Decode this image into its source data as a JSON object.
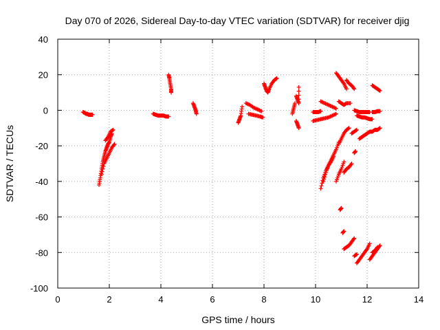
{
  "chart_data": {
    "type": "scatter",
    "title": "Day 070 of 2026, Sidereal Day-to-day VTEC variation (SDTVAR) for receiver djig",
    "xlabel": "GPS time / hours",
    "ylabel": "SDTVAR / TECUs",
    "xlim": [
      0,
      14
    ],
    "ylim": [
      -100,
      40
    ],
    "x_ticks": [
      0,
      2,
      4,
      6,
      8,
      10,
      12,
      14
    ],
    "y_ticks": [
      -100,
      -80,
      -60,
      -40,
      -20,
      0,
      20,
      40
    ],
    "grid": true,
    "marker": "plus",
    "series_color": "#ff0000",
    "segments": [
      {
        "x": [
          0.98,
          1.05,
          1.1,
          1.15,
          1.2,
          1.25,
          1.3,
          1.35
        ],
        "y": [
          -1,
          -1.5,
          -2,
          -2,
          -2.5,
          -2.5,
          -2.5,
          -2.5
        ]
      },
      {
        "x": [
          1.6,
          1.65,
          1.7,
          1.75,
          1.8,
          1.85,
          1.9,
          1.95,
          2.0,
          2.05,
          2.1
        ],
        "y": [
          -42,
          -38,
          -33,
          -29,
          -26,
          -23,
          -21,
          -19,
          -18,
          -15,
          -13
        ]
      },
      {
        "x": [
          1.7,
          1.8,
          1.9,
          2.0,
          2.1,
          2.2
        ],
        "y": [
          -36,
          -30,
          -27,
          -24,
          -21,
          -19
        ]
      },
      {
        "x": [
          1.85,
          1.95,
          2.05,
          2.15
        ],
        "y": [
          -17,
          -15,
          -12,
          -11
        ]
      },
      {
        "x": [
          3.7,
          3.8,
          3.9,
          4.0,
          4.1,
          4.2,
          4.3
        ],
        "y": [
          -2,
          -2.5,
          -3,
          -3,
          -3,
          -3.5,
          -3.5
        ]
      },
      {
        "x": [
          4.3,
          4.33,
          4.36,
          4.4,
          4.4
        ],
        "y": [
          20,
          18,
          15,
          12,
          10
        ]
      },
      {
        "x": [
          5.25,
          5.3,
          5.35,
          5.38
        ],
        "y": [
          4,
          2,
          0,
          -2
        ]
      },
      {
        "x": [
          7.0,
          7.05,
          7.1,
          7.15
        ],
        "y": [
          -7,
          -5,
          -3,
          2
        ]
      },
      {
        "x": [
          7.3,
          7.45,
          7.6,
          7.75,
          7.9
        ],
        "y": [
          4,
          3,
          1.5,
          0.5,
          -0.5
        ]
      },
      {
        "x": [
          7.4,
          7.55,
          7.7,
          7.85,
          7.95
        ],
        "y": [
          -2,
          -2.5,
          -3,
          -3.5,
          -4
        ]
      },
      {
        "x": [
          8.0,
          8.05,
          8.1,
          8.15,
          8.2,
          8.3,
          8.4,
          8.5
        ],
        "y": [
          15,
          13,
          11,
          10,
          12,
          15,
          17,
          18
        ]
      },
      {
        "x": [
          9.1,
          9.15,
          9.2
        ],
        "y": [
          -2,
          1,
          4
        ]
      },
      {
        "x": [
          9.25,
          9.3,
          9.35,
          9.35
        ],
        "y": [
          8,
          6,
          4,
          13
        ]
      },
      {
        "x": [
          9.25,
          9.3,
          9.35
        ],
        "y": [
          -6,
          -8,
          -10
        ]
      },
      {
        "x": [
          9.9,
          10.0,
          10.1,
          10.2
        ],
        "y": [
          -1,
          -1,
          -1,
          -0.5
        ]
      },
      {
        "x": [
          9.9,
          10.05,
          10.2,
          10.35,
          10.5,
          10.65,
          10.8
        ],
        "y": [
          -6,
          -5.5,
          -5,
          -4.5,
          -4,
          -3,
          -2
        ]
      },
      {
        "x": [
          10.2,
          10.35,
          10.5,
          10.65,
          10.8
        ],
        "y": [
          5,
          4,
          3,
          2,
          1
        ]
      },
      {
        "x": [
          10.8,
          10.9,
          11.0,
          11.1,
          11.2
        ],
        "y": [
          21,
          19,
          17,
          15,
          12
        ]
      },
      {
        "x": [
          11.2,
          11.3,
          11.4,
          11.5
        ],
        "y": [
          17,
          15,
          14,
          12
        ]
      },
      {
        "x": [
          10.9,
          11.0,
          11.1,
          11.2,
          11.35
        ],
        "y": [
          5,
          4,
          3,
          4,
          4
        ]
      },
      {
        "x": [
          11.5,
          11.6,
          11.7,
          11.8,
          11.9,
          12.0,
          12.1
        ],
        "y": [
          0,
          -0.5,
          -1,
          -1,
          -1,
          -1,
          -1
        ]
      },
      {
        "x": [
          11.6,
          11.7,
          11.8,
          11.9,
          12.0,
          12.1,
          12.2
        ],
        "y": [
          -3,
          -3.5,
          -4,
          -4,
          -4.5,
          -5,
          -5
        ]
      },
      {
        "x": [
          12.2,
          12.3,
          12.4,
          12.5
        ],
        "y": [
          -1,
          -1,
          -0.5,
          -0.5
        ]
      },
      {
        "x": [
          12.2,
          12.3,
          12.4,
          12.5
        ],
        "y": [
          14,
          13,
          12,
          11
        ]
      },
      {
        "x": [
          10.2,
          10.3,
          10.4,
          10.5,
          10.6,
          10.7,
          10.8,
          10.9
        ],
        "y": [
          -44,
          -38,
          -34,
          -31,
          -28,
          -25,
          -22,
          -18
        ]
      },
      {
        "x": [
          10.3,
          10.4,
          10.5,
          10.6,
          10.7
        ],
        "y": [
          -40,
          -35,
          -31,
          -29,
          -26
        ]
      },
      {
        "x": [
          10.9,
          11.0,
          11.1,
          11.2,
          11.3
        ],
        "y": [
          -19,
          -16,
          -13,
          -11,
          -10
        ]
      },
      {
        "x": [
          10.8,
          10.9,
          11.0,
          11.1
        ],
        "y": [
          -40,
          -36,
          -33,
          -29
        ]
      },
      {
        "x": [
          11.1,
          11.2,
          11.3,
          11.4
        ],
        "y": [
          -35,
          -33,
          -32,
          -30
        ]
      },
      {
        "x": [
          11.4,
          11.5,
          11.6
        ],
        "y": [
          -13,
          -12,
          -11
        ]
      },
      {
        "x": [
          11.5,
          11.55
        ],
        "y": [
          -24,
          -23
        ]
      },
      {
        "x": [
          11.7,
          11.8,
          11.9,
          12.0,
          12.1,
          12.2,
          12.3,
          12.4,
          12.5
        ],
        "y": [
          -16,
          -15,
          -14,
          -13,
          -12,
          -12,
          -11,
          -11,
          -10
        ]
      },
      {
        "x": [
          10.95,
          11.0
        ],
        "y": [
          -56,
          -55
        ]
      },
      {
        "x": [
          11.05,
          11.1
        ],
        "y": [
          -69,
          -68
        ]
      },
      {
        "x": [
          11.1,
          11.2,
          11.3,
          11.4,
          11.5
        ],
        "y": [
          -78,
          -77,
          -76,
          -74,
          -72
        ]
      },
      {
        "x": [
          11.6,
          11.7,
          11.8,
          11.9,
          12.0,
          12.1
        ],
        "y": [
          -86,
          -84,
          -82,
          -80,
          -78,
          -75
        ]
      },
      {
        "x": [
          11.5,
          11.6
        ],
        "y": [
          -82,
          -81
        ]
      },
      {
        "x": [
          12.1,
          12.2,
          12.3,
          12.4,
          12.5
        ],
        "y": [
          -84,
          -82,
          -80,
          -78,
          -76
        ]
      },
      {
        "x": [
          12.2,
          12.3,
          12.4
        ],
        "y": [
          -80,
          -79,
          -77
        ]
      }
    ]
  }
}
